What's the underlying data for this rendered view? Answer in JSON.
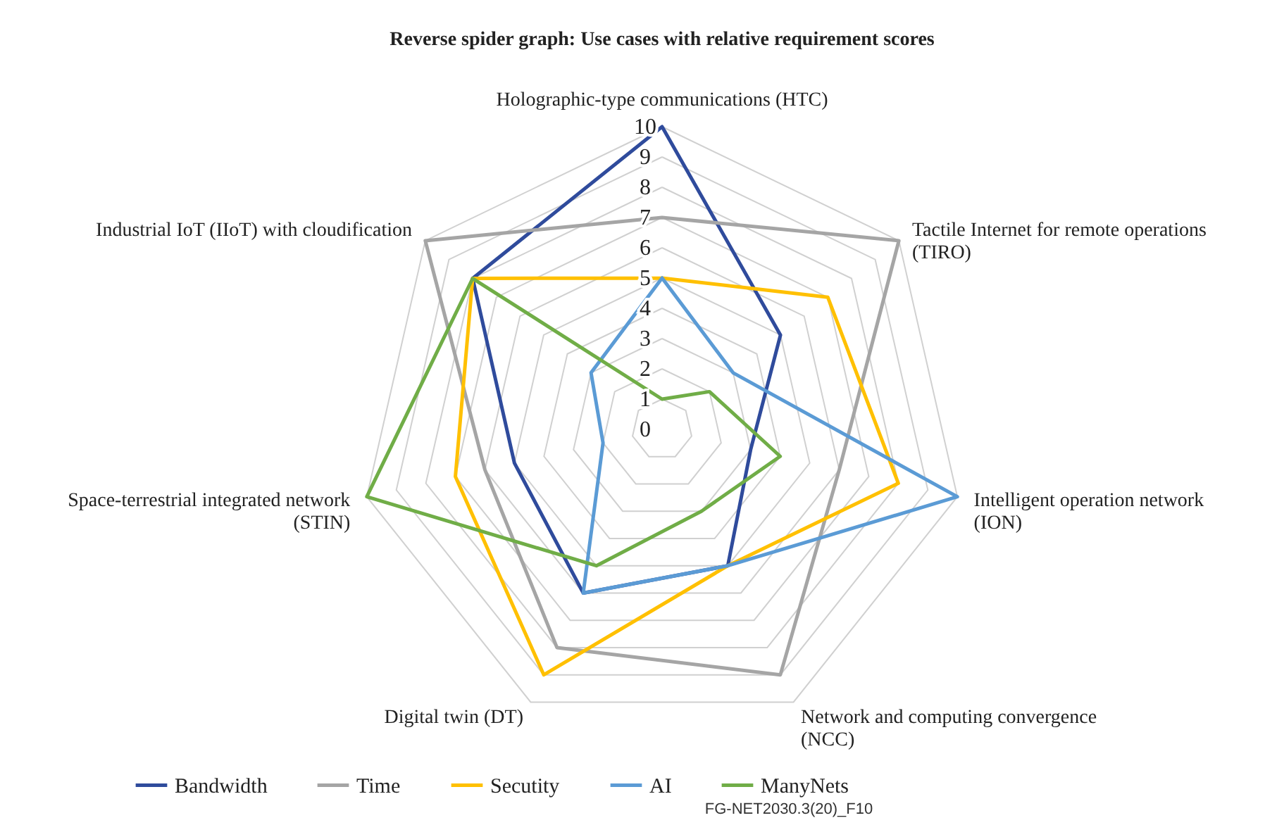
{
  "chart_data": {
    "type": "radar",
    "title": "Reverse spider graph: Use cases with relative requirement scores",
    "categories": [
      "Holographic-type communications (HTC)",
      "Tactile Internet for remote operations\n(TIRO)",
      "Intelligent operation network\n(ION)",
      "Network and computing convergence\n(NCC)",
      "Digital twin (DT)",
      "Space-terrestrial integrated network\n(STIN)",
      "Industrial IoT (IIoT) with cloudification"
    ],
    "series": [
      {
        "name": "Bandwidth",
        "color": "#2f4b9c",
        "values": [
          10,
          5,
          3,
          5,
          6,
          5,
          8
        ]
      },
      {
        "name": "Time",
        "color": "#a5a5a5",
        "values": [
          7,
          10,
          6,
          9,
          8,
          6,
          10
        ]
      },
      {
        "name": "Secutity",
        "color": "#ffc000",
        "values": [
          5,
          7,
          8,
          5,
          9,
          7,
          8
        ]
      },
      {
        "name": "AI",
        "color": "#5b9bd5",
        "values": [
          5,
          3,
          10,
          5,
          6,
          2,
          3
        ]
      },
      {
        "name": "ManyNets",
        "color": "#70ad47",
        "values": [
          1,
          2,
          4,
          3,
          5,
          10,
          8
        ]
      }
    ],
    "ylim": [
      0,
      10
    ],
    "yticks": [
      0,
      1,
      2,
      3,
      4,
      5,
      6,
      7,
      8,
      9,
      10
    ],
    "grid": true,
    "legend": "bottom",
    "annotations": [
      "FG-NET2030.3(20)_F10"
    ]
  }
}
